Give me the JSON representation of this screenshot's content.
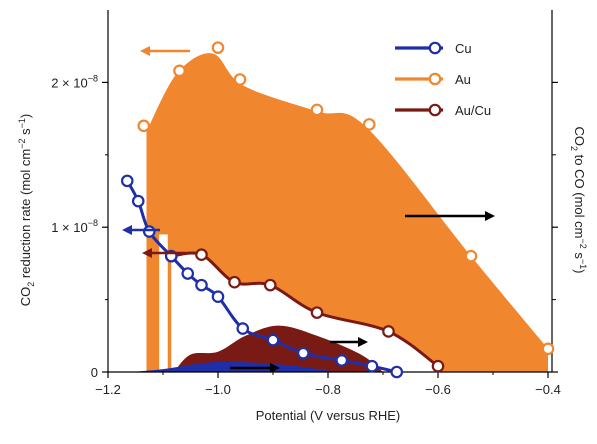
{
  "chart_data": {
    "type": "line",
    "xlabel": "Potential (V versus RHE)",
    "ylabel": {
      "pre": "CO",
      "sub": "2",
      "post": " reduction rate (mol cm",
      "sup1": "−2",
      "mid": " s",
      "sup2": "−1",
      "end": ")"
    },
    "ylabel_right": {
      "pre": "CO",
      "sub": "2",
      "post": " to CO (mol cm",
      "sup1": "−2",
      "mid": " s",
      "sup2": "−1",
      "end": ")"
    },
    "xlim": [
      -1.2,
      -0.4
    ],
    "ylim_left": [
      0,
      2.5e-08
    ],
    "x_ticks": [
      {
        "value": -1.2,
        "label": "−1.2"
      },
      {
        "value": -1.0,
        "label": "−1.0"
      },
      {
        "value": -0.8,
        "label": "−0.8"
      },
      {
        "value": -0.6,
        "label": "−0.6"
      },
      {
        "value": -0.4,
        "label": "−0.4"
      }
    ],
    "y_ticks_left": [
      {
        "value": 0,
        "label": "0"
      },
      {
        "value": 1e-08,
        "label": "1 × 10",
        "exp": "−8"
      },
      {
        "value": 2e-08,
        "label": "2 × 10",
        "exp": "−8"
      }
    ],
    "legend_position": "top-right",
    "series": [
      {
        "name": "Cu",
        "color": "#1f2fa8",
        "axis": "left",
        "x": [
          -1.165,
          -1.145,
          -1.125,
          -1.085,
          -1.055,
          -1.03,
          -1.0,
          -0.955,
          -0.9,
          -0.845,
          -0.775,
          -0.72,
          -0.675
        ],
        "y": [
          1.32e-08,
          1.18e-08,
          9.7e-09,
          8e-09,
          6.8e-09,
          6e-09,
          5.2e-09,
          3e-09,
          2.2e-09,
          1.3e-09,
          8e-10,
          4e-10,
          0.0
        ]
      },
      {
        "name": "Au",
        "color": "#f0862e",
        "axis": "right",
        "x": [
          -1.135,
          -1.07,
          -1.0,
          -0.96,
          -0.82,
          -0.725,
          -0.54,
          -0.4
        ],
        "y": [
          1.7e-08,
          2.08e-08,
          2.24e-08,
          2.02e-08,
          1.81e-08,
          1.71e-08,
          8e-09,
          1.6e-09
        ]
      },
      {
        "name": "Au/Cu",
        "color": "#7a1a14",
        "axis": "left",
        "x": [
          -1.085,
          -1.03,
          -0.97,
          -0.905,
          -0.82,
          -0.69,
          -0.6
        ],
        "y": [
          8e-09,
          8.1e-09,
          6.2e-09,
          6e-09,
          4.1e-09,
          2.8e-09,
          4e-10
        ]
      }
    ],
    "filled_areas": [
      {
        "name": "Au",
        "color": "#f0862e"
      },
      {
        "name": "Au/Cu",
        "color": "#7a1a14"
      },
      {
        "name": "Cu",
        "color": "#1f2fa8"
      }
    ],
    "arrows": [
      {
        "series": "Au",
        "direction": "left",
        "color": "#f0862e"
      },
      {
        "series": "Cu",
        "direction": "left",
        "color": "#1f2fa8"
      },
      {
        "series": "Au/Cu",
        "direction": "left",
        "color": "#7a1a14"
      },
      {
        "series": "Au",
        "direction": "right",
        "color": "#000000"
      },
      {
        "series": "Au/Cu",
        "direction": "right",
        "color": "#000000"
      },
      {
        "series": "Cu",
        "direction": "right",
        "color": "#000000"
      }
    ]
  }
}
